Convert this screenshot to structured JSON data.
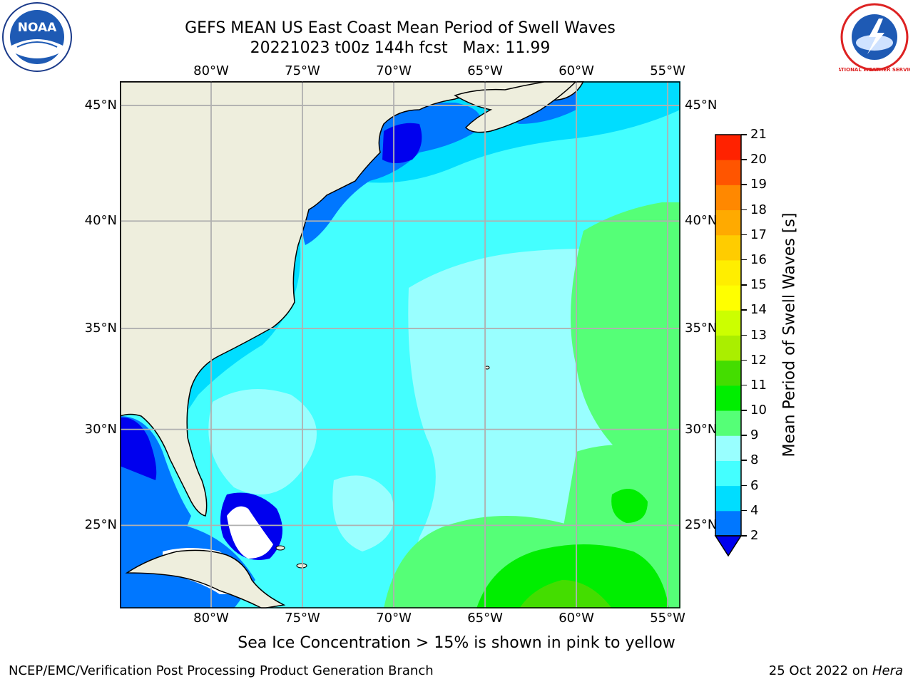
{
  "header": {
    "title_line1": "GEFS MEAN US East Coast Mean Period of Swell Waves",
    "title_line2": "20221023 t00z 144h fcst   Max: 11.99"
  },
  "logos": {
    "noaa_text": "NOAA",
    "nws_text": "NATIONAL WEATHER SERVICE"
  },
  "map": {
    "lon_ticks": [
      "80°W",
      "75°W",
      "70°W",
      "65°W",
      "60°W",
      "55°W"
    ],
    "lat_ticks": [
      "45°N",
      "40°N",
      "35°N",
      "30°N",
      "25°N"
    ],
    "lon_values": [
      -80,
      -75,
      -70,
      -65,
      -60,
      -55
    ],
    "lat_values": [
      45,
      40,
      35,
      30,
      25
    ],
    "lon_range": [
      -85,
      -54.3
    ],
    "lat_range": [
      20.5,
      46
    ],
    "land_color": "#eeeedd",
    "grid_color": "#b0b0b0"
  },
  "colorbar": {
    "label": "Mean Period of Swell Waves [s]",
    "ticks": [
      "2",
      "4",
      "6",
      "8",
      "9",
      "10",
      "11",
      "12",
      "13",
      "14",
      "15",
      "16",
      "17",
      "18",
      "19",
      "20",
      "21"
    ],
    "under_color": "#0000ee",
    "colors": [
      "#0077ff",
      "#00ddff",
      "#44ffff",
      "#99ffff",
      "#55ff77",
      "#00ee00",
      "#44dd00",
      "#aaee00",
      "#ccff00",
      "#ffff00",
      "#ffee00",
      "#ffcc00",
      "#ffaa00",
      "#ff8800",
      "#ff5500",
      "#ff2200",
      "#ff0000"
    ]
  },
  "caption": "Sea Ice Concentration > 15% is shown in pink to yellow",
  "footer": {
    "left": "NCEP/EMC/Verification Post Processing Product Generation Branch",
    "right_prefix": "25 Oct 2022 on ",
    "right_machine": "Hera"
  }
}
